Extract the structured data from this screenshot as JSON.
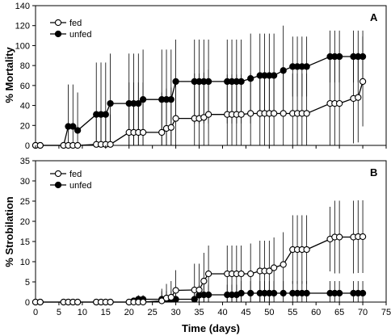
{
  "chart_data": [
    {
      "type": "line",
      "panel_letter": "A",
      "ylabel": "% Mortality",
      "ylim": [
        0,
        140
      ],
      "yticks": [
        "0",
        "20",
        "40",
        "60",
        "80",
        "100",
        "120",
        "140"
      ],
      "xlim": [
        0,
        75
      ],
      "legend_position": "top-left",
      "series": [
        {
          "name": "fed",
          "marker": "open-circle",
          "x": [
            0,
            1,
            6,
            7,
            8,
            9,
            13,
            14,
            15,
            16,
            20,
            21,
            22,
            23,
            27,
            28,
            29,
            30,
            34,
            35,
            36,
            37,
            41,
            42,
            43,
            44,
            46,
            48,
            49,
            50,
            51,
            53,
            55,
            56,
            57,
            58,
            63,
            64,
            65,
            68,
            69,
            70
          ],
          "y": [
            0,
            0,
            0,
            0,
            0,
            0,
            1,
            1,
            1,
            1,
            13,
            13,
            13,
            13,
            13,
            17,
            18,
            27,
            27,
            27,
            28,
            31,
            31,
            31,
            31,
            31,
            32,
            32,
            32,
            32,
            32,
            32,
            32,
            32,
            32,
            32,
            42,
            42,
            42,
            47,
            48,
            64
          ],
          "err": [
            0,
            0,
            0,
            0,
            0,
            0,
            30,
            30,
            30,
            30,
            50,
            50,
            50,
            50,
            40,
            40,
            40,
            40,
            45,
            45,
            45,
            45,
            40,
            40,
            40,
            40,
            40,
            40,
            40,
            40,
            40,
            40,
            40,
            40,
            40,
            40,
            45,
            45,
            45,
            45,
            45,
            45
          ]
        },
        {
          "name": "unfed",
          "marker": "filled-circle",
          "x": [
            0,
            1,
            6,
            7,
            8,
            9,
            13,
            14,
            15,
            16,
            20,
            21,
            22,
            23,
            27,
            28,
            29,
            30,
            34,
            35,
            36,
            37,
            41,
            42,
            43,
            44,
            46,
            48,
            49,
            50,
            51,
            53,
            55,
            56,
            57,
            58,
            63,
            64,
            65,
            68,
            69,
            70
          ],
          "y": [
            0,
            0,
            0,
            19,
            19,
            15,
            31,
            31,
            31,
            42,
            42,
            42,
            42,
            46,
            46,
            46,
            46,
            64,
            64,
            64,
            64,
            64,
            64,
            64,
            64,
            64,
            67,
            70,
            70,
            70,
            70,
            75,
            79,
            79,
            79,
            79,
            89,
            89,
            89,
            89,
            89,
            89
          ],
          "err": [
            0,
            0,
            0,
            42,
            42,
            38,
            52,
            52,
            52,
            50,
            50,
            50,
            50,
            50,
            50,
            50,
            50,
            42,
            42,
            42,
            42,
            42,
            42,
            42,
            42,
            42,
            45,
            42,
            42,
            42,
            42,
            45,
            30,
            30,
            30,
            30,
            26,
            26,
            26,
            26,
            26,
            26
          ]
        }
      ]
    },
    {
      "type": "line",
      "panel_letter": "B",
      "ylabel": "% Strobilation",
      "xlabel": "Time (days)",
      "ylim": [
        0,
        35
      ],
      "yticks": [
        "0",
        "5",
        "10",
        "15",
        "20",
        "25",
        "30",
        "35"
      ],
      "xlim": [
        0,
        75
      ],
      "xticks": [
        "0",
        "5",
        "10",
        "15",
        "20",
        "25",
        "30",
        "35",
        "40",
        "45",
        "50",
        "55",
        "60",
        "65",
        "70",
        "75"
      ],
      "legend_position": "top-left",
      "series": [
        {
          "name": "fed",
          "marker": "open-circle",
          "x": [
            0,
            1,
            6,
            7,
            8,
            9,
            13,
            14,
            15,
            16,
            20,
            21,
            22,
            23,
            27,
            28,
            29,
            30,
            34,
            35,
            36,
            37,
            41,
            42,
            43,
            44,
            46,
            48,
            49,
            50,
            51,
            53,
            55,
            56,
            57,
            58,
            63,
            64,
            65,
            68,
            69,
            70
          ],
          "y": [
            0,
            0,
            0,
            0,
            0,
            0,
            0,
            0,
            0,
            0,
            0,
            0,
            0,
            0,
            0.3,
            1,
            1.2,
            2.9,
            3,
            3,
            5.2,
            7,
            7,
            7,
            7,
            7,
            7,
            7.7,
            7.7,
            7.7,
            8.5,
            9.3,
            13,
            13,
            13,
            13,
            15.6,
            16.1,
            16.1,
            16.1,
            16.2,
            16.2
          ],
          "err": [
            0,
            0,
            0,
            0,
            0,
            0,
            0,
            0,
            0,
            0,
            0,
            0,
            0,
            0,
            3,
            3.5,
            4,
            5,
            6.5,
            6.5,
            7,
            7,
            7,
            7,
            7,
            7,
            7.5,
            7.5,
            7.5,
            7.5,
            7.5,
            8,
            8.5,
            8.5,
            8.5,
            8.5,
            8,
            9,
            9,
            9,
            9,
            9
          ]
        },
        {
          "name": "unfed",
          "marker": "filled-circle",
          "x": [
            0,
            1,
            6,
            7,
            8,
            9,
            13,
            14,
            15,
            16,
            20,
            21,
            22,
            23,
            27,
            28,
            29,
            30,
            34,
            35,
            36,
            37,
            41,
            42,
            43,
            44,
            46,
            48,
            49,
            50,
            51,
            53,
            55,
            56,
            57,
            58,
            63,
            64,
            65,
            68,
            69,
            70
          ],
          "y": [
            0,
            0,
            0,
            0,
            0,
            0,
            0,
            0,
            0,
            0,
            0,
            0.3,
            0.7,
            0.7,
            0.7,
            0.7,
            0.7,
            0.7,
            0.7,
            1.7,
            1.8,
            1.8,
            1.8,
            1.8,
            1.8,
            2.2,
            2.2,
            2.2,
            2.2,
            2.2,
            2.2,
            2.2,
            2.2,
            2.2,
            2.2,
            2.2,
            2.2,
            2.2,
            2.2,
            2.2,
            2.2,
            2.2
          ],
          "err": [
            0,
            0,
            0,
            0,
            0,
            0,
            0,
            0,
            0,
            0,
            0,
            0.5,
            1,
            1,
            2,
            2,
            2,
            2,
            2,
            2.5,
            2.5,
            2.5,
            2.5,
            2.5,
            2.5,
            3,
            3,
            3,
            3,
            3,
            3,
            3,
            3,
            3,
            3,
            3,
            3,
            3,
            3,
            3,
            3,
            3
          ]
        }
      ]
    }
  ]
}
